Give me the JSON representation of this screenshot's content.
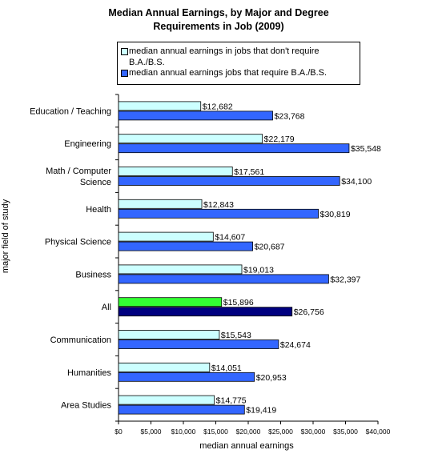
{
  "chart_data": {
    "type": "bar",
    "orientation": "horizontal",
    "title": "Median Annual Earnings, by Major and Degree Requirements in Job (2009)",
    "xlabel": "median annual earnings",
    "ylabel": "major field of study",
    "xlim": [
      0,
      40000
    ],
    "x_ticks": [
      "$0",
      "$5,000",
      "$10,000",
      "$15,000",
      "$20,000",
      "$25,000",
      "$30,000",
      "$35,000",
      "$40,000"
    ],
    "legend_position": "top",
    "grid": false,
    "categories": [
      [
        "Education / Teaching"
      ],
      [
        "Engineering"
      ],
      [
        "Math / Computer",
        "Science"
      ],
      [
        "Health"
      ],
      [
        "Physical Science"
      ],
      [
        "Business"
      ],
      [
        "All"
      ],
      [
        "Communication"
      ],
      [
        "Humanities"
      ],
      [
        "Area Studies"
      ]
    ],
    "highlight_index": 6,
    "series": [
      {
        "name": "median annual earnings in jobs that don't require B.A./B.S.",
        "color": "#ccffff",
        "highlight_color": "#33ff33",
        "values": [
          12682,
          22179,
          17561,
          12843,
          14607,
          19013,
          15896,
          15543,
          14051,
          14775
        ],
        "labels": [
          "$12,682",
          "$22,179",
          "$17,561",
          "$12,843",
          "$14,607",
          "$19,013",
          "$15,896",
          "$15,543",
          "$14,051",
          "$14,775"
        ]
      },
      {
        "name": "median annual earnings jobs that require B.A./B.S.",
        "color": "#3366ff",
        "highlight_color": "#000080",
        "values": [
          23768,
          35548,
          34100,
          30819,
          20687,
          32397,
          26756,
          24674,
          20953,
          19419
        ],
        "labels": [
          "$23,768",
          "$35,548",
          "$34,100",
          "$30,819",
          "$20,687",
          "$32,397",
          "$26,756",
          "$24,674",
          "$20,953",
          "$19,419"
        ]
      }
    ]
  }
}
